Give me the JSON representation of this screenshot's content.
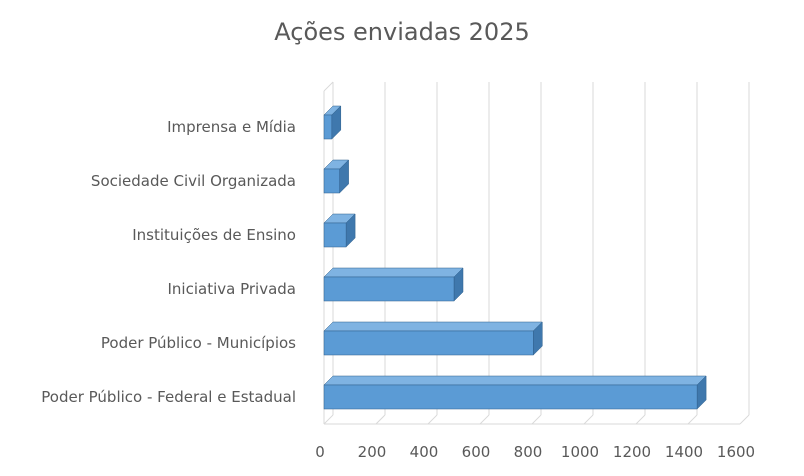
{
  "chart_data": {
    "type": "bar",
    "orientation": "horizontal",
    "title": "Ações enviadas 2025",
    "categories": [
      "Imprensa e Mídia",
      "Sociedade Civil Organizada",
      "Instituições de Ensino",
      "Iniciativa Privada",
      "Poder Público - Municípios",
      "Poder Público - Federal e Estadual"
    ],
    "values": [
      30,
      60,
      85,
      500,
      805,
      1435
    ],
    "xlim": [
      0,
      1600
    ],
    "xticks": [
      0,
      200,
      400,
      600,
      800,
      1000,
      1200,
      1400,
      1600
    ],
    "xlabel": "",
    "ylabel": "",
    "grid": "vertical",
    "legend": "none",
    "style": "3d",
    "colors": {
      "bar_front": "#5b9bd5",
      "bar_top": "#7fb3e2",
      "bar_side": "#3f78ad",
      "bar_edge": "#2e5f8c",
      "grid": "#d9d9d9",
      "floor": "#d9d9d9",
      "text": "#595959"
    }
  }
}
